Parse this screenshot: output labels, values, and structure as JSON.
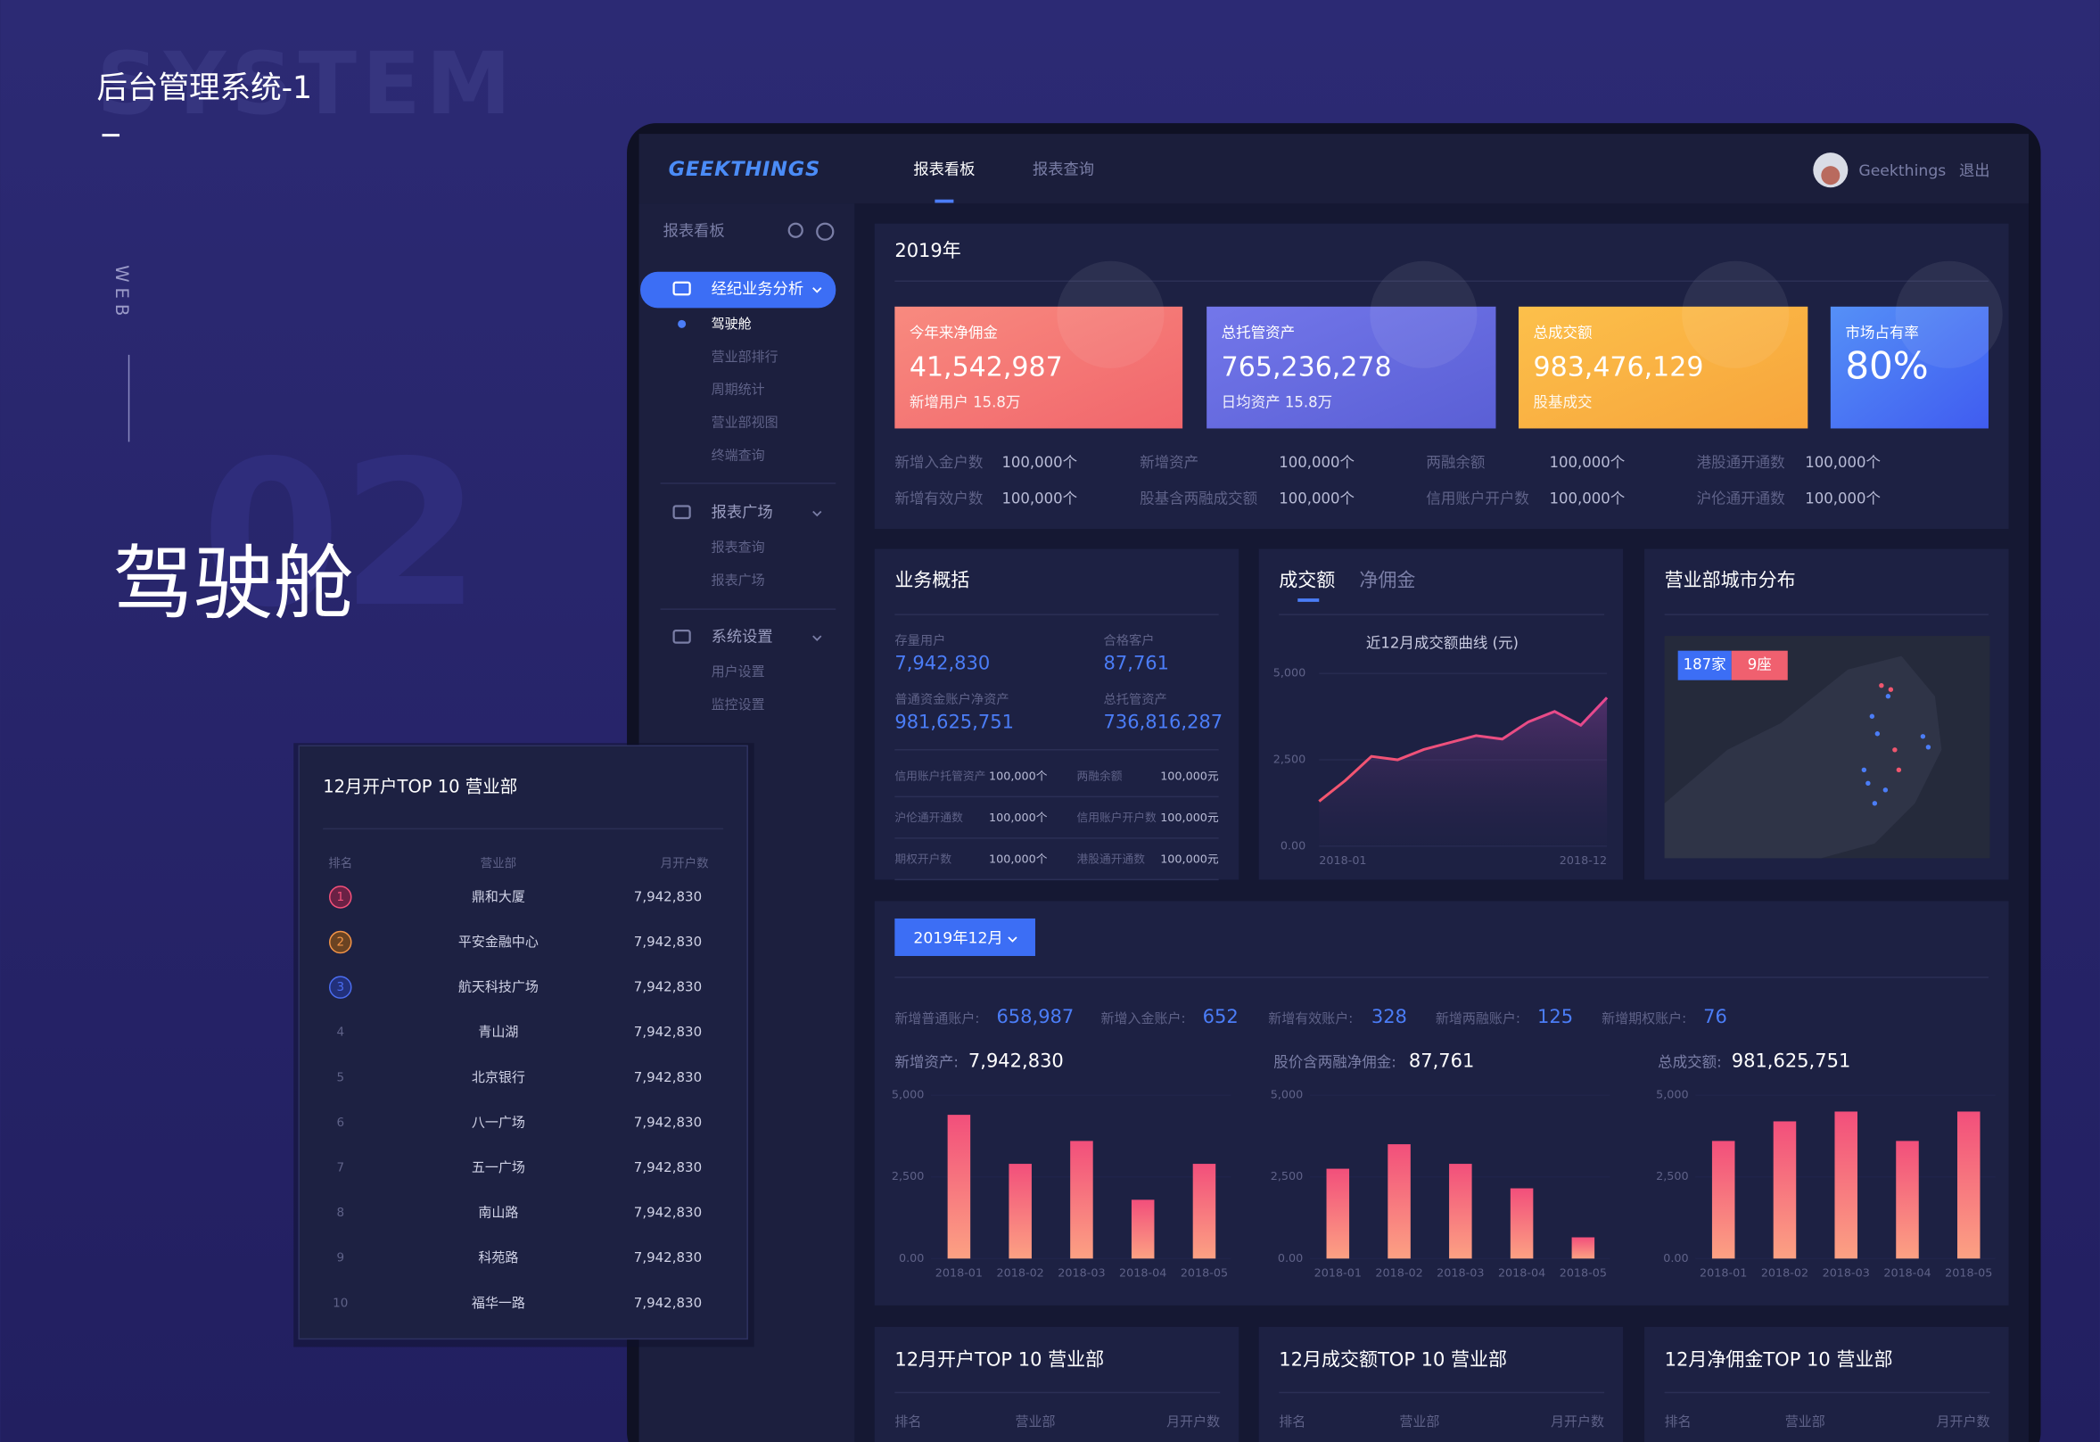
{
  "hero": {
    "title": "后台管理系统-1",
    "bg_word": "SYSTEM",
    "side_label": "WEB",
    "number": "02",
    "heading": "驾驶舱"
  },
  "app": {
    "logo": "GEEKTHINGS",
    "tabs": [
      "报表看板",
      "报表查询"
    ],
    "user": "Geekthings",
    "logout": "退出"
  },
  "sidebar": {
    "title": "报表看板",
    "groups": [
      {
        "label": "经纪业务分析",
        "items": [
          "驾驶舱",
          "营业部排行",
          "周期统计",
          "营业部视图",
          "终端查询"
        ]
      },
      {
        "label": "报表广场",
        "items": [
          "报表查询",
          "报表广场"
        ]
      },
      {
        "label": "系统设置",
        "items": [
          "用户设置",
          "监控设置"
        ]
      }
    ]
  },
  "summary": {
    "year": "2019年",
    "cards": [
      {
        "label": "今年来净佣金",
        "value": "41,542,987",
        "sub": "新增用户 15.8万"
      },
      {
        "label": "总托管资产",
        "value": "765,236,278",
        "sub": "日均资产 15.8万"
      },
      {
        "label": "总成交额",
        "value": "983,476,129",
        "sub": "股基成交"
      },
      {
        "label": "市场占有率",
        "value": "80%"
      }
    ],
    "stats": [
      {
        "label": "新增入金户数",
        "value": "100,000个"
      },
      {
        "label": "新增资产",
        "value": "100,000个"
      },
      {
        "label": "两融余额",
        "value": "100,000个"
      },
      {
        "label": "港股通开通数",
        "value": "100,000个"
      },
      {
        "label": "新增有效户数",
        "value": "100,000个"
      },
      {
        "label": "股基含两融成交额",
        "value": "100,000个"
      },
      {
        "label": "信用账户开户数",
        "value": "100,000个"
      },
      {
        "label": "沪伦通开通数",
        "value": "100,000个"
      }
    ]
  },
  "overview": {
    "title": "业务概括",
    "big": [
      {
        "label": "存量用户",
        "value": "7,942,830"
      },
      {
        "label": "合格客户",
        "value": "87,761"
      },
      {
        "label": "普通资金账户净资产",
        "value": "981,625,751"
      },
      {
        "label": "总托管资产",
        "value": "736,816,287"
      }
    ],
    "small": [
      {
        "label": "信用账户托管资产",
        "value": "100,000个"
      },
      {
        "label": "两融余额",
        "value": "100,000元"
      },
      {
        "label": "沪伦通开通数",
        "value": "100,000个"
      },
      {
        "label": "信用账户开户数",
        "value": "100,000元"
      },
      {
        "label": "期权开户数",
        "value": "100,000个"
      },
      {
        "label": "港股通开通数",
        "value": "100,000元"
      }
    ]
  },
  "trend": {
    "tabs": [
      "成交额",
      "净佣金"
    ],
    "title": "近12月成交额曲线 (元)",
    "categories": [
      "2018-01",
      null,
      null,
      null,
      null,
      null,
      null,
      null,
      null,
      null,
      null,
      "2018-12"
    ],
    "values": [
      1300,
      1900,
      2600,
      2500,
      2800,
      3000,
      3200,
      3100,
      3600,
      3900,
      3500,
      4300
    ],
    "ylim": [
      0,
      5000
    ],
    "yticks": [
      {
        "value": 0,
        "label": "0.00"
      },
      {
        "value": 2500,
        "label": "2,500"
      },
      {
        "value": 5000,
        "label": "5,000"
      }
    ]
  },
  "map": {
    "title": "营业部城市分布",
    "count": "187家",
    "seats": "9座"
  },
  "filter": {
    "month": "2019年12月"
  },
  "kpis": [
    {
      "label": "新增普通账户:",
      "value": "658,987"
    },
    {
      "label": "新增入金账户:",
      "value": "652"
    },
    {
      "label": "新增有效账户:",
      "value": "328"
    },
    {
      "label": "新增两融账户:",
      "value": "125"
    },
    {
      "label": "新增期权账户:",
      "value": "76"
    }
  ],
  "bar_charts": [
    {
      "label": "新增资产:",
      "value": "7,942,830",
      "categories": [
        "2018-01",
        "2018-02",
        "2018-03",
        "2018-04",
        "2018-05"
      ],
      "values": [
        4400,
        2900,
        3600,
        1800,
        2900
      ],
      "ylim": [
        0,
        5000
      ],
      "yticks": [
        {
          "value": 0,
          "label": "0.00"
        },
        {
          "value": 2500,
          "label": "2,500"
        },
        {
          "value": 5000,
          "label": "5,000"
        }
      ]
    },
    {
      "label": "股价含两融净佣金:",
      "value": "87,761",
      "categories": [
        "2018-01",
        "2018-02",
        "2018-03",
        "2018-04",
        "2018-05"
      ],
      "values": [
        2750,
        3500,
        2900,
        2150,
        650
      ],
      "ylim": [
        0,
        5000
      ],
      "yticks": [
        {
          "value": 0,
          "label": "0.00"
        },
        {
          "value": 2500,
          "label": "2,500"
        },
        {
          "value": 5000,
          "label": "5,000"
        }
      ]
    },
    {
      "label": "总成交额:",
      "value": "981,625,751",
      "categories": [
        "2018-01",
        "2018-02",
        "2018-03",
        "2018-04",
        "2018-05"
      ],
      "values": [
        3600,
        4200,
        4500,
        3600,
        4500
      ],
      "ylim": [
        0,
        5000
      ],
      "yticks": [
        {
          "value": 0,
          "label": "0.00"
        },
        {
          "value": 2500,
          "label": "2,500"
        },
        {
          "value": 5000,
          "label": "5,000"
        }
      ]
    }
  ],
  "popup": {
    "title": "12月开户TOP 10 营业部",
    "columns": [
      "排名",
      "营业部",
      "月开户数"
    ],
    "rows": [
      [
        1,
        "鼎和大厦",
        "7,942,830"
      ],
      [
        2,
        "平安金融中心",
        "7,942,830"
      ],
      [
        3,
        "航天科技广场",
        "7,942,830"
      ],
      [
        4,
        "青山湖",
        "7,942,830"
      ],
      [
        5,
        "北京银行",
        "7,942,830"
      ],
      [
        6,
        "八一广场",
        "7,942,830"
      ],
      [
        7,
        "五一广场",
        "7,942,830"
      ],
      [
        8,
        "南山路",
        "7,942,830"
      ],
      [
        9,
        "科苑路",
        "7,942,830"
      ],
      [
        10,
        "福华一路",
        "7,942,830"
      ]
    ]
  },
  "bottom_tables": [
    {
      "title": "12月开户TOP 10 营业部",
      "columns": [
        "排名",
        "营业部",
        "月开户数"
      ]
    },
    {
      "title": "12月成交额TOP 10 营业部",
      "columns": [
        "排名",
        "营业部",
        "月开户数"
      ]
    },
    {
      "title": "12月净佣金TOP 10 营业部",
      "columns": [
        "排名",
        "营业部",
        "月开户数"
      ]
    }
  ]
}
